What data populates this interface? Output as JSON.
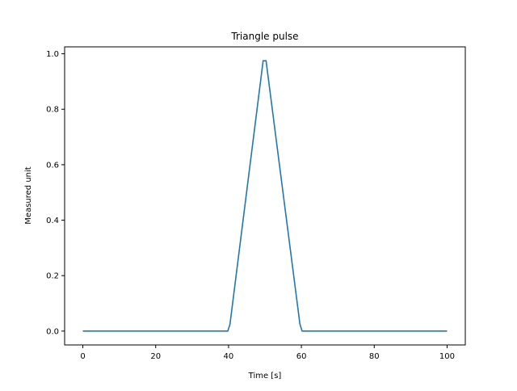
{
  "chart_data": {
    "type": "line",
    "title": "Triangle pulse",
    "xlabel": "Time [s]",
    "ylabel": "Measured unit",
    "xlim": [
      -5,
      105
    ],
    "ylim": [
      -0.05,
      1.025
    ],
    "xticks": [
      0,
      20,
      40,
      60,
      80,
      100
    ],
    "xtick_labels": [
      "0",
      "20",
      "40",
      "60",
      "80",
      "100"
    ],
    "yticks": [
      0.0,
      0.2,
      0.4,
      0.6,
      0.8,
      1.0
    ],
    "ytick_labels": [
      "0.0",
      "0.2",
      "0.4",
      "0.6",
      "0.8",
      "1.0"
    ],
    "grid": false,
    "legend": "none",
    "series": [
      {
        "color": "#1f77b4",
        "x": [
          0,
          39.8,
          40.4,
          49.5,
          50.3,
          59.6,
          60.2,
          100
        ],
        "y": [
          0.0,
          0.0,
          0.025,
          0.975,
          0.975,
          0.025,
          0.0,
          0.0
        ]
      }
    ]
  }
}
